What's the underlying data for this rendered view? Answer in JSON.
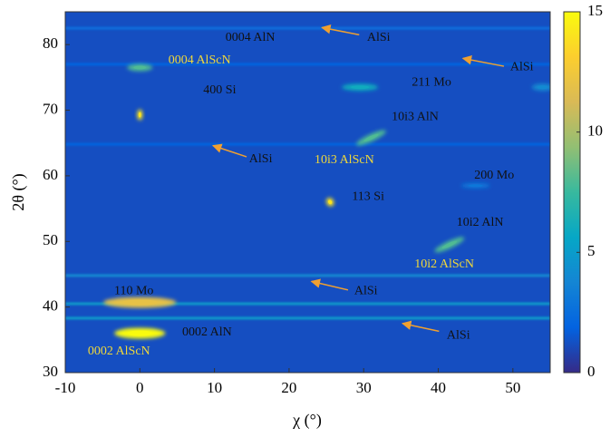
{
  "chart_data": {
    "type": "heatmap",
    "x_label": "χ (°)",
    "y_label": "2θ (°)",
    "xlim": [
      -10,
      55
    ],
    "xticks": [
      -10,
      0,
      10,
      20,
      30,
      40,
      50
    ],
    "ylim": [
      30,
      85
    ],
    "yticks": [
      30,
      40,
      50,
      60,
      70,
      80
    ],
    "clim": [
      0,
      15
    ],
    "cticks": [
      0,
      5,
      10,
      15
    ],
    "colormap": [
      "#352a87",
      "#0363e1",
      "#1485d4",
      "#06a7c6",
      "#38b99e",
      "#92bf73",
      "#d9ba56",
      "#fcce2e",
      "#f9fb0e"
    ],
    "background_value": 1.2,
    "streaks": [
      {
        "y": 82.5,
        "value": 2.5
      },
      {
        "y": 77,
        "value": 2
      },
      {
        "y": 64.8,
        "value": 2
      },
      {
        "y": 44.8,
        "value": 4
      },
      {
        "y": 40.5,
        "value": 5
      },
      {
        "y": 38.3,
        "value": 5
      }
    ],
    "spots": [
      {
        "x": 0,
        "y": 69.3,
        "value": 14
      },
      {
        "x": 0,
        "y": 76.5,
        "value": 8
      },
      {
        "x": 0,
        "y": 40.7,
        "value": 12
      },
      {
        "x": 0,
        "y": 36,
        "value": 15
      },
      {
        "x": 25.5,
        "y": 56,
        "value": 14
      },
      {
        "x": 29.5,
        "y": 73.5,
        "value": 6
      },
      {
        "x": 31,
        "y": 65.8,
        "value": 8
      },
      {
        "x": 41.5,
        "y": 49.5,
        "value": 8
      },
      {
        "x": 45,
        "y": 58.5,
        "value": 3
      },
      {
        "x": 54,
        "y": 73.5,
        "value": 4
      }
    ],
    "annotations": [
      {
        "text": "0004 AlN",
        "x": 14.8,
        "y": 81,
        "color": "#111111"
      },
      {
        "text": "AlSi",
        "x": 32,
        "y": 81,
        "color": "#111111",
        "arrow": [
          29.4,
          81.5,
          24.4,
          82.6
        ]
      },
      {
        "text": "AlSi",
        "x": 51.2,
        "y": 76.5,
        "color": "#111111",
        "arrow": [
          48.8,
          76.7,
          43.3,
          77.9
        ]
      },
      {
        "text": "0004 AlScN",
        "x": 8,
        "y": 77.6,
        "color": "#f0d83a"
      },
      {
        "text": "400 Si",
        "x": 10.7,
        "y": 73,
        "color": "#111111"
      },
      {
        "text": "211 Mo",
        "x": 39.1,
        "y": 74.2,
        "color": "#111111"
      },
      {
        "text": "10i3 AlN",
        "x": 36.9,
        "y": 68.9,
        "color": "#111111"
      },
      {
        "text": "AlSi",
        "x": 16.2,
        "y": 62.5,
        "color": "#111111",
        "arrow": [
          14.3,
          62.9,
          9.8,
          64.6
        ]
      },
      {
        "text": "10i3 AlScN",
        "x": 27.4,
        "y": 62.4,
        "color": "#f0d83a"
      },
      {
        "text": "200 Mo",
        "x": 47.5,
        "y": 60,
        "color": "#111111"
      },
      {
        "text": "113 Si",
        "x": 30.6,
        "y": 56.8,
        "color": "#111111"
      },
      {
        "text": "10i2 AlN",
        "x": 45.6,
        "y": 52.8,
        "color": "#111111"
      },
      {
        "text": "10i2 AlScN",
        "x": 40.8,
        "y": 46.5,
        "color": "#f0d83a"
      },
      {
        "text": "110 Mo",
        "x": -0.8,
        "y": 42.4,
        "color": "#111111"
      },
      {
        "text": "AlSi",
        "x": 30.3,
        "y": 42.4,
        "color": "#111111",
        "arrow": [
          27.9,
          42.6,
          23,
          43.9
        ]
      },
      {
        "text": "0002 AlN",
        "x": 9,
        "y": 36.1,
        "color": "#111111"
      },
      {
        "text": "AlSi",
        "x": 42.7,
        "y": 35.6,
        "color": "#111111",
        "arrow": [
          40.1,
          36.3,
          35.2,
          37.5
        ]
      },
      {
        "text": "0002 AlScN",
        "x": -2.8,
        "y": 33.2,
        "color": "#f0d83a"
      }
    ]
  }
}
